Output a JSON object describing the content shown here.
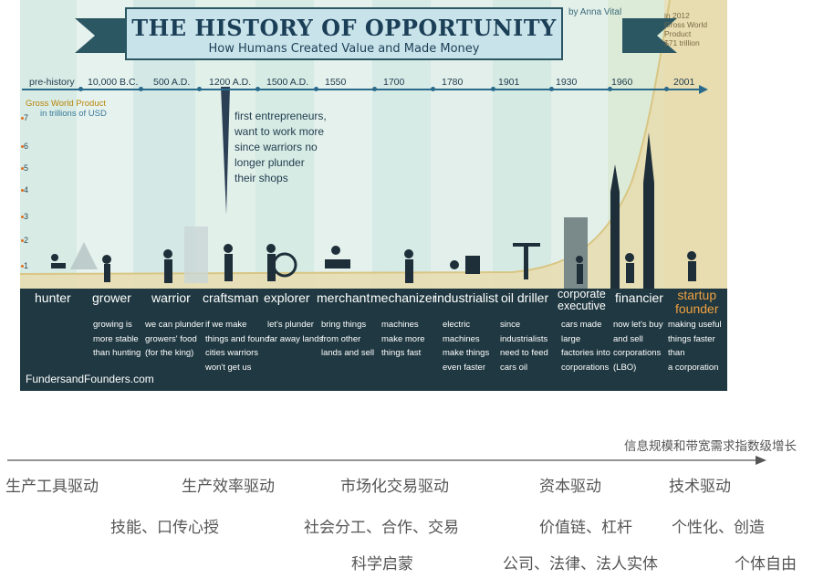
{
  "infographic": {
    "title": "THE HISTORY OF OPPORTUNITY",
    "subtitle": "How Humans Created Value and Made Money",
    "author": "by Anna Vital",
    "gwp_2012": [
      "in 2012",
      "Gross World Product",
      "$71 trillion"
    ],
    "gwp_axis_label": [
      "Gross World Product",
      "in trillions of USD"
    ],
    "gwp_ticks": [
      "7",
      "6",
      "5",
      "4",
      "3",
      "2",
      "1"
    ],
    "eras": [
      "pre-history",
      "10,000 B.C.",
      "500 A.D.",
      "1200 A.D.",
      "1500 A.D.",
      "1550",
      "1700",
      "1780",
      "1901",
      "1930",
      "1960",
      "2001"
    ],
    "annotation": [
      "first entrepreneurs,",
      "want to work more",
      "since warriors no",
      "longer plunder",
      "their shops"
    ],
    "roles": [
      {
        "name": [
          "hunter"
        ],
        "desc": []
      },
      {
        "name": [
          "grower"
        ],
        "desc": [
          "growing is",
          "more stable",
          "than hunting"
        ]
      },
      {
        "name": [
          "warrior"
        ],
        "desc": [
          "we can plunder",
          "growers' food",
          "(for the king)"
        ]
      },
      {
        "name": [
          "craftsman"
        ],
        "desc": [
          "if we make",
          "things and found",
          "cities warriors",
          "won't get us"
        ]
      },
      {
        "name": [
          "explorer"
        ],
        "desc": [
          "let's plunder",
          "far away lands"
        ]
      },
      {
        "name": [
          "merchant"
        ],
        "desc": [
          "bring things",
          "from other",
          "lands and sell"
        ]
      },
      {
        "name": [
          "mechanizer"
        ],
        "desc": [
          "machines",
          "make more",
          "things fast"
        ]
      },
      {
        "name": [
          "industrialist"
        ],
        "desc": [
          "electric",
          "machines",
          "make things",
          "even faster"
        ]
      },
      {
        "name": [
          "oil driller"
        ],
        "desc": [
          "since",
          "industrialists",
          "need to feed",
          "cars oil"
        ]
      },
      {
        "name": [
          "corporate",
          "executive"
        ],
        "desc": [
          "cars made",
          "large",
          "factories into",
          "corporations"
        ]
      },
      {
        "name": [
          "financier"
        ],
        "desc": [
          "now let's buy",
          "and sell",
          "corporations",
          "(LBO)"
        ]
      },
      {
        "name": [
          "startup",
          "founder"
        ],
        "desc": [
          "making useful",
          "things faster than",
          "a corporation"
        ]
      }
    ],
    "site": "FundersandFounders.com",
    "colors": {
      "dark_band": "#1f3841",
      "title": "#1b3f57",
      "accent": "#f0a040",
      "curve_fill": "#e8dcae"
    }
  },
  "annotations_cn": {
    "top_label": "信息规模和带宽需求指数级增长",
    "row1": [
      "生产工具驱动",
      "生产效率驱动",
      "市场化交易驱动",
      "资本驱动",
      "技术驱动"
    ],
    "row2": [
      "技能、口传心授",
      "社会分工、合作、交易",
      "价值链、杠杆",
      "个性化、创造"
    ],
    "row3": [
      "科学启蒙",
      "公司、法律、法人实体",
      "个体自由"
    ]
  }
}
